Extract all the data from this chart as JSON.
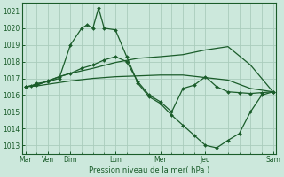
{
  "background_color": "#cce8dc",
  "grid_color": "#aaccbc",
  "line_color": "#1a5c2a",
  "xlabel": "Pression niveau de la mer( hPa )",
  "day_labels": [
    "Mar",
    "Ven",
    "Dim",
    "Lun",
    "Mer",
    "Jeu",
    "Sam"
  ],
  "day_positions": [
    0,
    1,
    2,
    4,
    6,
    8,
    11
  ],
  "minor_tick_positions": [
    0,
    0.5,
    1,
    1.5,
    2,
    2.5,
    3,
    3.5,
    4,
    4.5,
    5,
    5.5,
    6,
    6.5,
    7,
    7.5,
    8,
    8.5,
    9,
    9.5,
    10,
    10.5,
    11
  ],
  "ylim": [
    1012.5,
    1021.5
  ],
  "ytick_values": [
    1013,
    1014,
    1015,
    1016,
    1017,
    1018,
    1019,
    1020,
    1021
  ],
  "series1_x": [
    0,
    0.25,
    0.5,
    1.0,
    1.5,
    2.0,
    2.5,
    2.75,
    3.0,
    3.25,
    3.5,
    4.0,
    4.5,
    5.0,
    5.5,
    6.0,
    6.5,
    7.0,
    7.5,
    8.0,
    8.5,
    9.0,
    9.5,
    10.0,
    10.5,
    11.0
  ],
  "series1_y": [
    1016.5,
    1016.55,
    1016.7,
    1016.8,
    1017.0,
    1019.0,
    1020.0,
    1020.2,
    1020.0,
    1021.2,
    1020.0,
    1019.9,
    1018.3,
    1016.7,
    1015.9,
    1015.5,
    1014.8,
    1014.2,
    1013.6,
    1013.0,
    1012.85,
    1013.3,
    1013.7,
    1015.0,
    1016.0,
    1016.2
  ],
  "series2_x": [
    0,
    0.5,
    1.0,
    1.5,
    2.0,
    3.0,
    4.0,
    5.0,
    6.0,
    7.0,
    8.0,
    9.0,
    10.0,
    11.0
  ],
  "series2_y": [
    1016.5,
    1016.55,
    1016.65,
    1016.75,
    1016.85,
    1017.0,
    1017.1,
    1017.15,
    1017.2,
    1017.2,
    1017.05,
    1016.9,
    1016.4,
    1016.2
  ],
  "series3_x": [
    0,
    0.5,
    1.0,
    1.5,
    2.0,
    3.0,
    4.0,
    5.0,
    6.0,
    7.0,
    8.0,
    9.0,
    10.0,
    11.0
  ],
  "series3_y": [
    1016.5,
    1016.6,
    1016.85,
    1017.1,
    1017.3,
    1017.6,
    1017.95,
    1018.2,
    1018.3,
    1018.42,
    1018.7,
    1018.9,
    1017.8,
    1016.2
  ],
  "series4_x": [
    0,
    0.5,
    1.0,
    1.5,
    2.0,
    2.5,
    3.0,
    3.5,
    4.0,
    4.5,
    5.0,
    5.5,
    6.0,
    6.5,
    7.0,
    7.5,
    8.0,
    8.5,
    9.0,
    9.5,
    10.0,
    10.5,
    11.0
  ],
  "series4_y": [
    1016.5,
    1016.6,
    1016.85,
    1017.1,
    1017.3,
    1017.6,
    1017.8,
    1018.1,
    1018.3,
    1018.0,
    1016.8,
    1016.0,
    1015.6,
    1015.0,
    1016.4,
    1016.6,
    1017.1,
    1016.5,
    1016.2,
    1016.15,
    1016.1,
    1016.15,
    1016.2
  ]
}
